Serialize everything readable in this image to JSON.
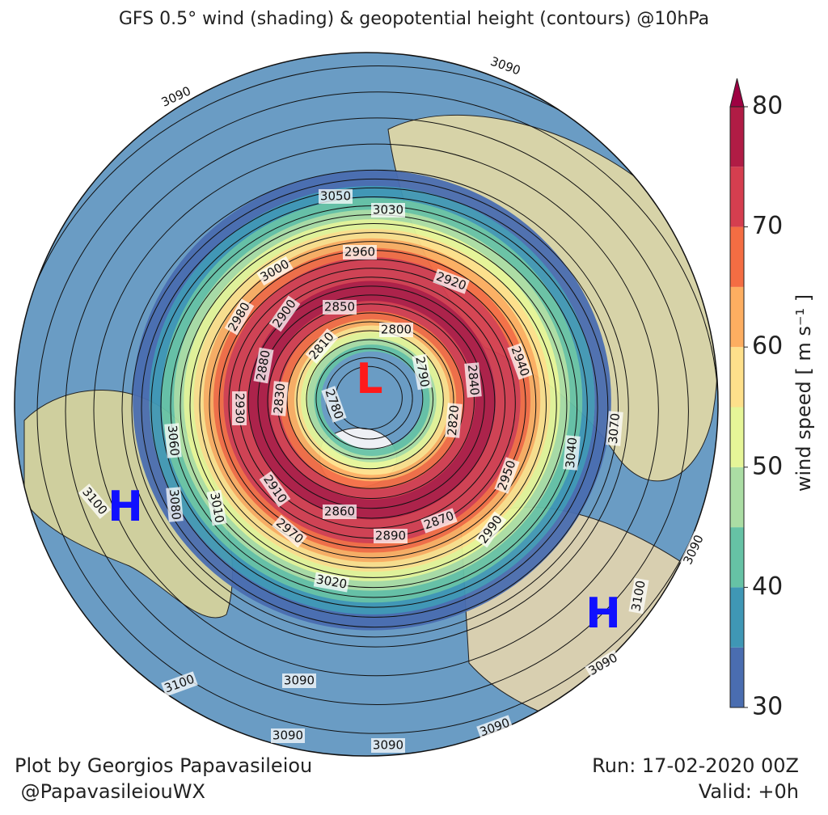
{
  "title": "GFS 0.5° wind (shading) & geopotential height (contours) @10hPa",
  "colorbar": {
    "label": "wind speed [ m s⁻¹ ]",
    "levels": [
      30,
      35,
      40,
      45,
      50,
      55,
      60,
      65,
      70,
      75,
      80
    ],
    "colors": [
      "#4a6db0",
      "#3f97b5",
      "#66c2a5",
      "#abdda4",
      "#e6f598",
      "#fee08b",
      "#fdae61",
      "#f46d43",
      "#d53e4f",
      "#b01c45"
    ],
    "extend_color": "#9e0142",
    "ticks": [
      30,
      40,
      50,
      60,
      70,
      80
    ]
  },
  "contour_labels": [
    3090,
    3090,
    3050,
    3030,
    2960,
    3000,
    2920,
    2850,
    2900,
    2980,
    2800,
    2810,
    2940,
    2790,
    2840,
    2880,
    2830,
    2930,
    2780,
    2820,
    3060,
    3070,
    3040,
    2950,
    3100,
    3080,
    3010,
    2910,
    2860,
    2870,
    2970,
    2990,
    2890,
    3020,
    3100,
    3090,
    3090,
    3090,
    3100,
    3090,
    3090,
    3090
  ],
  "low_label": "L",
  "high_labels": [
    "H",
    "H"
  ],
  "footer": {
    "author": "Plot by Georgios Papavasileiou",
    "handle": " @PapavasileiouWX",
    "run": "Run: 17-02-2020 00Z",
    "valid": "Valid: +0h"
  }
}
